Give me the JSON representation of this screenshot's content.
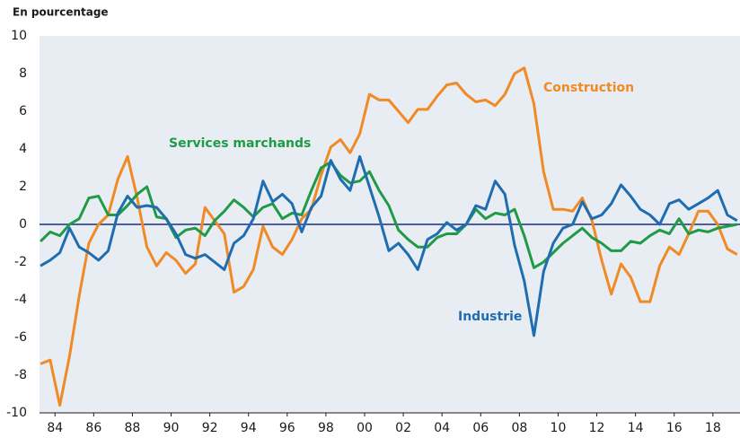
{
  "chart_data": {
    "type": "line",
    "ylabel": "En pourcentage",
    "x": [
      1983.25,
      1983.75,
      1984.25,
      1984.75,
      1985.25,
      1985.75,
      1986.25,
      1986.75,
      1987.25,
      1987.75,
      1988.25,
      1988.75,
      1989.25,
      1989.75,
      1990.25,
      1990.75,
      1991.25,
      1991.75,
      1992.25,
      1992.75,
      1993.25,
      1993.75,
      1994.25,
      1994.75,
      1995.25,
      1995.75,
      1996.25,
      1996.75,
      1997.25,
      1997.75,
      1998.25,
      1998.75,
      1999.25,
      1999.75,
      2000.25,
      2000.75,
      2001.25,
      2001.75,
      2002.25,
      2002.75,
      2003.25,
      2003.75,
      2004.25,
      2004.75,
      2005.25,
      2005.75,
      2006.25,
      2006.75,
      2007.25,
      2007.75,
      2008.25,
      2008.75,
      2009.25,
      2009.75,
      2010.25,
      2010.75,
      2011.25,
      2011.75,
      2012.25,
      2012.75,
      2013.25,
      2013.75,
      2014.25,
      2014.75,
      2015.25,
      2015.75,
      2016.25,
      2016.75,
      2017.25,
      2017.75,
      2018.25,
      2018.75,
      2019.25
    ],
    "series": [
      {
        "name": "Construction",
        "color": "#f08a24",
        "values": [
          -7.4,
          -7.2,
          -9.6,
          -7.0,
          -3.8,
          -1.0,
          0.0,
          0.5,
          2.4,
          3.6,
          1.4,
          -1.2,
          -2.2,
          -1.5,
          -1.9,
          -2.6,
          -2.1,
          0.9,
          0.2,
          -0.5,
          -3.6,
          -3.3,
          -2.4,
          -0.1,
          -1.2,
          -1.6,
          -0.8,
          0.3,
          0.8,
          2.6,
          4.1,
          4.5,
          3.8,
          4.8,
          6.9,
          6.6,
          6.6,
          6.0,
          5.4,
          6.1,
          6.1,
          6.8,
          7.4,
          7.5,
          6.9,
          6.5,
          6.6,
          6.3,
          6.9,
          8.0,
          8.3,
          6.4,
          2.8,
          0.8,
          0.8,
          0.7,
          1.4,
          0.2,
          -1.9,
          -3.7,
          -2.1,
          -2.8,
          -4.1,
          -4.1,
          -2.2,
          -1.2,
          -1.6,
          -0.5,
          0.7,
          0.7,
          0.0,
          -1.3,
          -1.6
        ]
      },
      {
        "name": "Services marchands",
        "color": "#1f9a47",
        "values": [
          -0.9,
          -0.4,
          -0.6,
          0.0,
          0.3,
          1.4,
          1.5,
          0.5,
          0.5,
          1.0,
          1.6,
          2.0,
          0.4,
          0.3,
          -0.7,
          -0.3,
          -0.2,
          -0.6,
          0.2,
          0.7,
          1.3,
          0.9,
          0.4,
          0.9,
          1.1,
          0.3,
          0.6,
          0.5,
          1.8,
          3.0,
          3.3,
          2.6,
          2.2,
          2.3,
          2.8,
          1.8,
          1.0,
          -0.3,
          -0.8,
          -1.2,
          -1.2,
          -0.7,
          -0.5,
          -0.5,
          0.0,
          0.8,
          0.3,
          0.6,
          0.5,
          0.8,
          -0.6,
          -2.3,
          -2.0,
          -1.5,
          -1.0,
          -0.6,
          -0.2,
          -0.7,
          -1.0,
          -1.4,
          -1.4,
          -0.9,
          -1.0,
          -0.6,
          -0.3,
          -0.5,
          0.3,
          -0.5,
          -0.3,
          -0.4,
          -0.2,
          -0.1,
          0.0
        ]
      },
      {
        "name": "Industrie",
        "color": "#1f6db0",
        "values": [
          -2.2,
          -1.9,
          -1.5,
          -0.2,
          -1.2,
          -1.5,
          -1.9,
          -1.4,
          0.6,
          1.5,
          0.9,
          1.0,
          0.9,
          0.3,
          -0.5,
          -1.6,
          -1.8,
          -1.6,
          -2.0,
          -2.4,
          -1.0,
          -0.6,
          0.3,
          2.3,
          1.2,
          1.6,
          1.1,
          -0.4,
          0.9,
          1.5,
          3.4,
          2.4,
          1.8,
          3.6,
          2.0,
          0.4,
          -1.4,
          -1.0,
          -1.6,
          -2.4,
          -0.8,
          -0.5,
          0.1,
          -0.3,
          0.0,
          1.0,
          0.8,
          2.3,
          1.6,
          -1.1,
          -3.0,
          -5.9,
          -2.5,
          -1.0,
          -0.2,
          0.0,
          1.2,
          0.3,
          0.5,
          1.1,
          2.1,
          1.5,
          0.8,
          0.5,
          0.0,
          1.1,
          1.3,
          0.8,
          1.1,
          1.4,
          1.8,
          0.5,
          0.2
        ]
      }
    ],
    "xlim": [
      1983.2,
      2019.4
    ],
    "xticks": [
      {
        "value": 1984,
        "label": "84"
      },
      {
        "value": 1986,
        "label": "86"
      },
      {
        "value": 1988,
        "label": "88"
      },
      {
        "value": 1990,
        "label": "90"
      },
      {
        "value": 1992,
        "label": "92"
      },
      {
        "value": 1994,
        "label": "94"
      },
      {
        "value": 1996,
        "label": "96"
      },
      {
        "value": 1998,
        "label": "98"
      },
      {
        "value": 2000,
        "label": "00"
      },
      {
        "value": 2002,
        "label": "02"
      },
      {
        "value": 2004,
        "label": "04"
      },
      {
        "value": 2006,
        "label": "06"
      },
      {
        "value": 2008,
        "label": "08"
      },
      {
        "value": 2010,
        "label": "10"
      },
      {
        "value": 2012,
        "label": "12"
      },
      {
        "value": 2014,
        "label": "14"
      },
      {
        "value": 2016,
        "label": "16"
      },
      {
        "value": 2018,
        "label": "18"
      }
    ],
    "ylim": [
      -10,
      10
    ],
    "yticks": [
      10,
      8,
      6,
      4,
      2,
      0,
      -2,
      -4,
      -6,
      -8,
      -10
    ],
    "grid": false
  }
}
